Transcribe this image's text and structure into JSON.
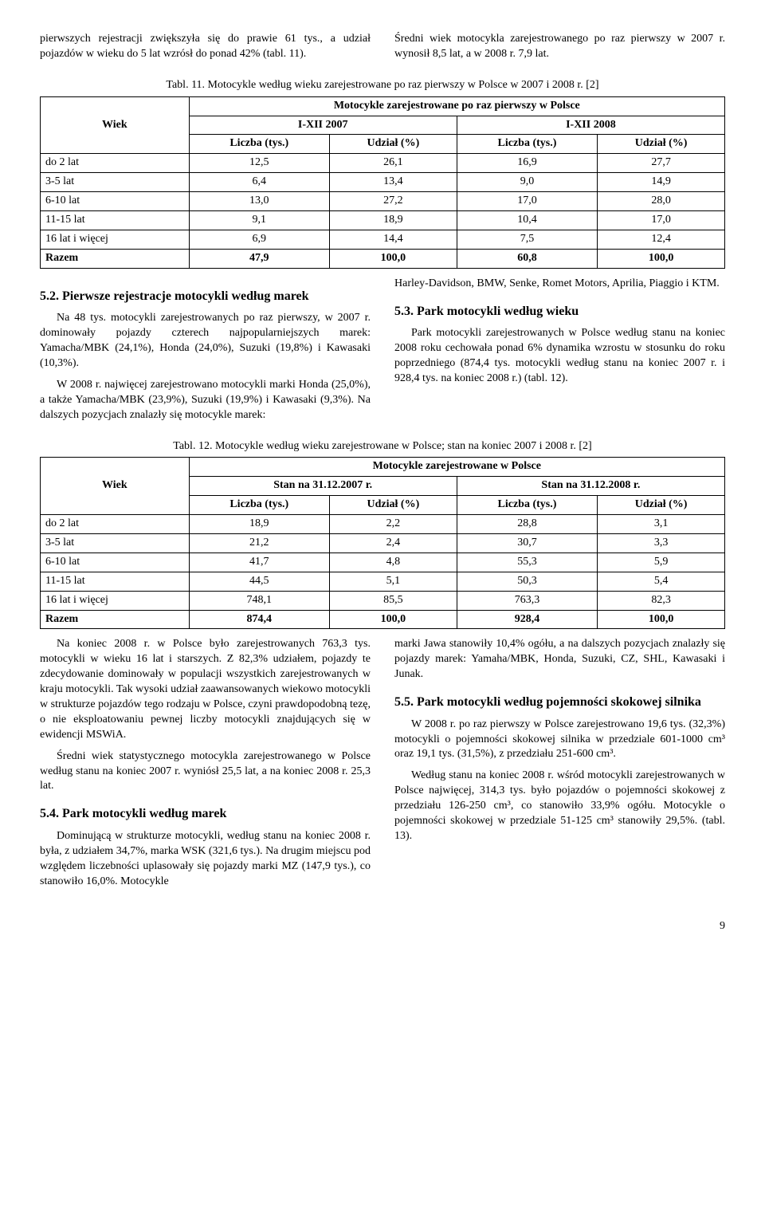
{
  "intro": {
    "left": "pierwszych rejestracji zwiększyła się do prawie 61 tys., a udział pojazdów w wieku do 5 lat wzrósł do ponad 42% (tabl. 11).",
    "right": "Średni wiek motocykla zarejestrowanego po raz pierwszy w 2007 r. wynosił 8,5 lat, a w 2008 r. 7,9 lat."
  },
  "table11": {
    "caption": "Tabl. 11. Motocykle według wieku zarejestrowane po raz pierwszy w Polsce w 2007 i 2008 r. [2]",
    "header_group": "Motocykle zarejestrowane po raz pierwszy w Polsce",
    "col_wiek": "Wiek",
    "col_period1": "I-XII 2007",
    "col_period2": "I-XII 2008",
    "col_liczba": "Liczba (tys.)",
    "col_udzial": "Udział (%)",
    "rows": [
      {
        "label": "do 2 lat",
        "a": "12,5",
        "b": "26,1",
        "c": "16,9",
        "d": "27,7"
      },
      {
        "label": "3-5 lat",
        "a": "6,4",
        "b": "13,4",
        "c": "9,0",
        "d": "14,9"
      },
      {
        "label": "6-10 lat",
        "a": "13,0",
        "b": "27,2",
        "c": "17,0",
        "d": "28,0"
      },
      {
        "label": "11-15 lat",
        "a": "9,1",
        "b": "18,9",
        "c": "10,4",
        "d": "17,0"
      },
      {
        "label": "16 lat i więcej",
        "a": "6,9",
        "b": "14,4",
        "c": "7,5",
        "d": "12,4"
      },
      {
        "label": "Razem",
        "a": "47,9",
        "b": "100,0",
        "c": "60,8",
        "d": "100,0"
      }
    ]
  },
  "section52": {
    "heading": "5.2. Pierwsze rejestracje motocykli według marek",
    "p1": "Na 48 tys. motocykli zarejestrowanych po raz pierwszy, w 2007 r. dominowały pojazdy czterech najpopularniejszych marek: Yamacha/MBK (24,1%), Honda (24,0%), Suzuki (19,8%) i Kawasaki (10,3%).",
    "p2": "W 2008 r. najwięcej zarejestrowano motocykli marki Honda (25,0%), a także Yamacha/MBK (23,9%), Suzuki (19,9%) i Kawasaki (9,3%). Na dalszych pozycjach znalazły się motocykle marek:",
    "right_p": "Harley-Davidson, BMW, Senke, Romet Motors, Aprilia, Piaggio i KTM."
  },
  "section53": {
    "heading": "5.3. Park motocykli według wieku",
    "p1": "Park motocykli zarejestrowanych w Polsce według stanu na koniec 2008 roku cechowała ponad 6% dynamika wzrostu w stosunku do roku poprzedniego (874,4 tys. motocykli według stanu na koniec 2007 r. i 928,4 tys. na koniec 2008 r.) (tabl. 12)."
  },
  "table12": {
    "caption": "Tabl. 12. Motocykle według wieku zarejestrowane w Polsce; stan na koniec 2007 i 2008 r. [2]",
    "header_group": "Motocykle zarejestrowane w Polsce",
    "col_wiek": "Wiek",
    "col_period1": "Stan na 31.12.2007 r.",
    "col_period2": "Stan na 31.12.2008 r.",
    "col_liczba": "Liczba (tys.)",
    "col_udzial": "Udział (%)",
    "rows": [
      {
        "label": "do 2 lat",
        "a": "18,9",
        "b": "2,2",
        "c": "28,8",
        "d": "3,1"
      },
      {
        "label": "3-5 lat",
        "a": "21,2",
        "b": "2,4",
        "c": "30,7",
        "d": "3,3"
      },
      {
        "label": "6-10 lat",
        "a": "41,7",
        "b": "4,8",
        "c": "55,3",
        "d": "5,9"
      },
      {
        "label": "11-15 lat",
        "a": "44,5",
        "b": "5,1",
        "c": "50,3",
        "d": "5,4"
      },
      {
        "label": "16 lat i więcej",
        "a": "748,1",
        "b": "85,5",
        "c": "763,3",
        "d": "82,3"
      },
      {
        "label": "Razem",
        "a": "874,4",
        "b": "100,0",
        "c": "928,4",
        "d": "100,0"
      }
    ]
  },
  "bottom_left": {
    "p1": "Na koniec 2008 r. w Polsce było zarejestrowanych 763,3 tys. motocykli w wieku 16 lat i starszych. Z 82,3% udziałem, pojazdy te zdecydowanie dominowały w populacji wszystkich zarejestrowanych w kraju motocykli. Tak wysoki udział zaawansowanych wiekowo motocykli w strukturze pojazdów tego rodzaju w Polsce, czyni prawdopodobną tezę, o nie eksploatowaniu pewnej liczby motocykli znajdujących się w ewidencji MSWiA.",
    "p2": "Średni wiek statystycznego motocykla zarejestrowanego w Polsce według stanu na koniec 2007 r. wyniósł 25,5 lat, a na koniec 2008 r. 25,3 lat."
  },
  "section54": {
    "heading": "5.4. Park motocykli według marek",
    "p1": "Dominującą w strukturze motocykli, według stanu na koniec 2008 r. była, z udziałem 34,7%, marka WSK (321,6 tys.). Na drugim miejscu pod względem liczebności uplasowały się pojazdy marki MZ (147,9 tys.), co stanowiło 16,0%. Motocykle"
  },
  "bottom_right": {
    "p1": "marki Jawa stanowiły 10,4% ogółu, a na dalszych pozycjach znalazły się pojazdy marek: Yamaha/MBK, Honda, Suzuki, CZ, SHL, Kawasaki i Junak."
  },
  "section55": {
    "heading": "5.5. Park motocykli według pojemności skokowej silnika",
    "p1": "W 2008 r. po raz pierwszy w Polsce zarejestrowano 19,6 tys. (32,3%) motocykli o pojemności skokowej silnika w przedziale 601-1000 cm³ oraz 19,1 tys. (31,5%), z przedziału 251-600 cm³.",
    "p2": "Według stanu na koniec 2008 r. wśród motocykli zarejestrowanych w Polsce najwięcej, 314,3 tys. było pojazdów o pojemności skokowej z przedziału 126-250 cm³, co stanowiło 33,9% ogółu. Motocykle o pojemności skokowej w przedziale 51-125 cm³ stanowiły 29,5%. (tabl. 13)."
  },
  "page_number": "9"
}
